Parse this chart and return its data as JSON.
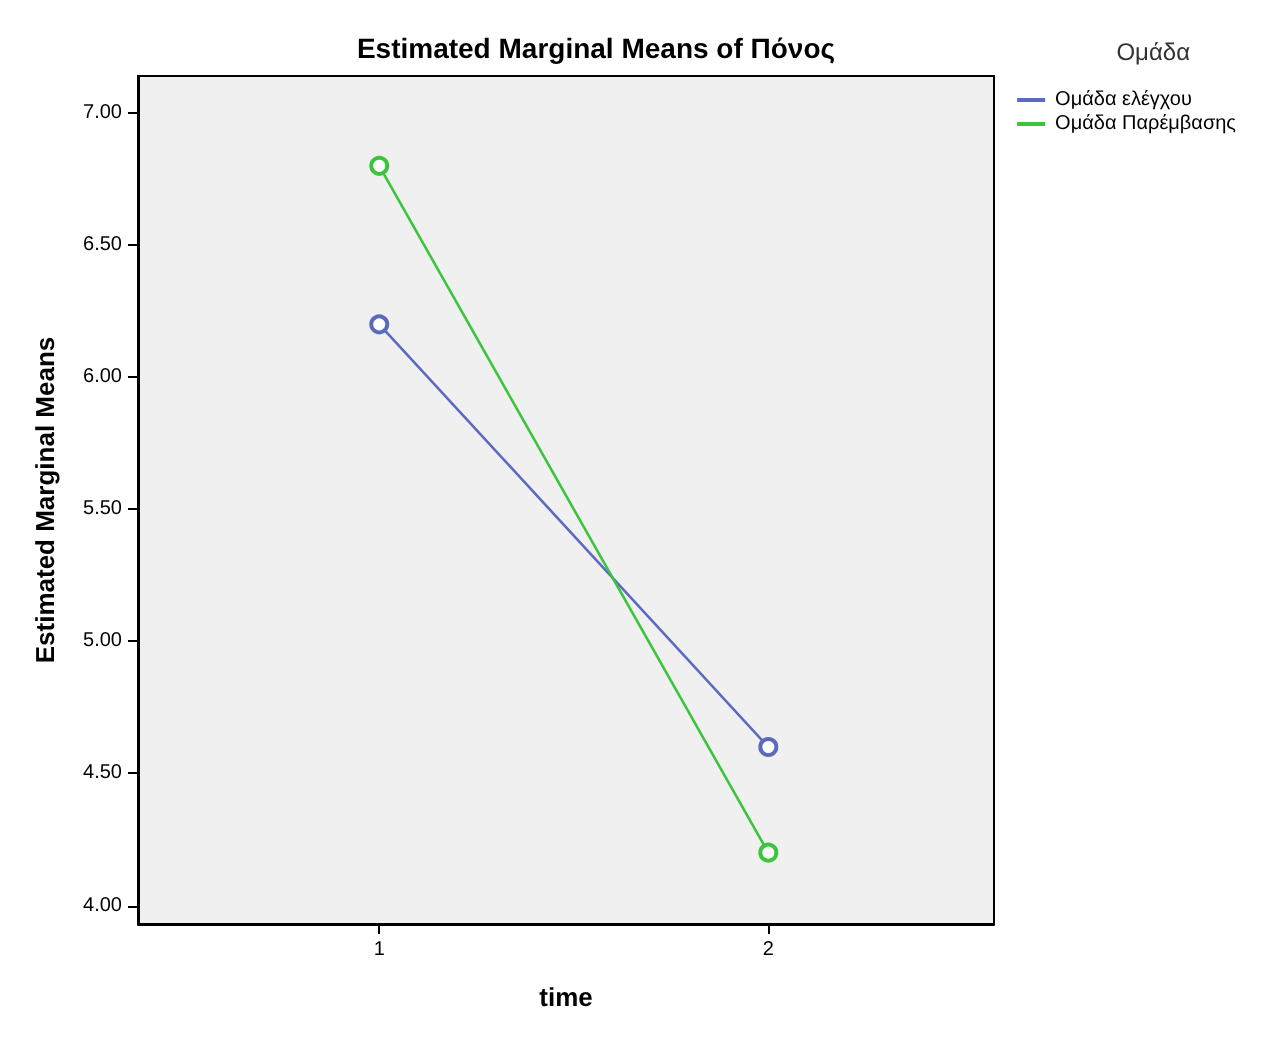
{
  "chart_data": {
    "type": "line",
    "title": "Estimated Marginal Means of Πόνος",
    "xlabel": "time",
    "ylabel": "Estimated Marginal Means",
    "legend_title": "Ομάδα",
    "x": [
      1,
      2
    ],
    "xlim": [
      0.38,
      2.58
    ],
    "xticks": [
      1,
      2
    ],
    "ylim": [
      3.93,
      7.14
    ],
    "yticks": [
      {
        "value": 4,
        "label": "4.00"
      },
      {
        "value": 4.5,
        "label": "4.50"
      },
      {
        "value": 5,
        "label": "5.00"
      },
      {
        "value": 5.5,
        "label": "5.50"
      },
      {
        "value": 6,
        "label": "6.00"
      },
      {
        "value": 6.5,
        "label": "6.50"
      },
      {
        "value": 7,
        "label": "7.00"
      }
    ],
    "grid": false,
    "legend": "top right",
    "marker": "circle",
    "line_style": "solid",
    "series": [
      {
        "name": "Ομάδα ελέγχου",
        "color": "#5b6abf",
        "values": [
          6.2,
          4.6
        ]
      },
      {
        "name": "Ομάδα Παρέμβασης",
        "color": "#3cc43c",
        "values": [
          6.8,
          4.2
        ]
      }
    ]
  }
}
